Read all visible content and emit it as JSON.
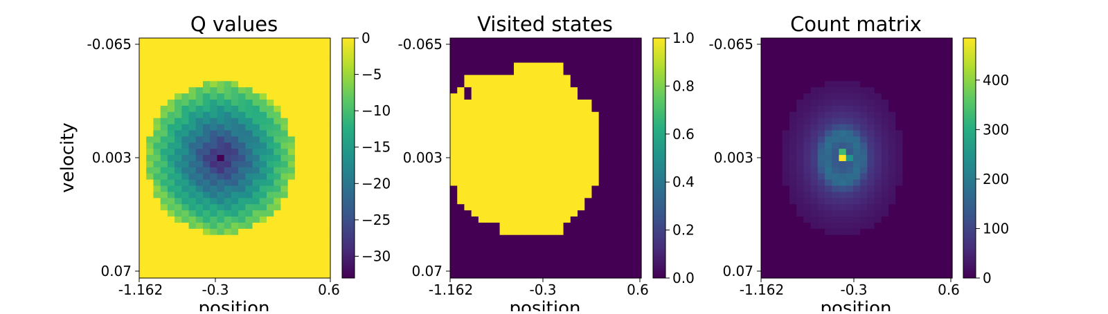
{
  "chart_data": [
    {
      "type": "heatmap",
      "title": "Q values",
      "xlabel": "position",
      "ylabel": "velocity",
      "xticks": [
        "-1.162",
        "-0.3",
        "0.6"
      ],
      "yticks": [
        "-0.065",
        "0.003",
        "0.07"
      ],
      "xlim": [
        -1.162,
        0.6
      ],
      "ylim": [
        -0.065,
        0.07
      ],
      "grid": false,
      "colormap": "viridis",
      "colorbar": {
        "ticks": [
          "0",
          "−5",
          "−10",
          "−15",
          "−20",
          "−25",
          "−30"
        ],
        "values": [
          0,
          -5,
          -10,
          -15,
          -20,
          -25,
          -30
        ],
        "range": [
          -33,
          0
        ]
      },
      "pattern": {
        "shape": "ring",
        "center_position": -0.45,
        "center_velocity": 0.003,
        "min_value": -33,
        "background_value": 0
      }
    },
    {
      "type": "heatmap",
      "title": "Visited states",
      "xlabel": "position",
      "ylabel": "",
      "xticks": [
        "-1.162",
        "-0.3",
        "0.6"
      ],
      "yticks": [
        "-0.065",
        "0.003",
        "0.07"
      ],
      "xlim": [
        -1.162,
        0.6
      ],
      "ylim": [
        -0.065,
        0.07
      ],
      "grid": false,
      "colormap": "viridis",
      "colorbar": {
        "ticks": [
          "0.0",
          "0.2",
          "0.4",
          "0.6",
          "0.8",
          "1.0"
        ],
        "values": [
          0,
          0.2,
          0.4,
          0.6,
          0.8,
          1.0
        ],
        "range": [
          0,
          1
        ]
      },
      "pattern": {
        "shape": "binary-blob",
        "visited_value": 1,
        "unvisited_value": 0
      }
    },
    {
      "type": "heatmap",
      "title": "Count matrix",
      "xlabel": "position",
      "ylabel": "",
      "xticks": [
        "-1.162",
        "-0.3",
        "0.6"
      ],
      "yticks": [
        "-0.065",
        "0.003",
        "0.07"
      ],
      "xlim": [
        -1.162,
        0.6
      ],
      "ylim": [
        -0.065,
        0.07
      ],
      "grid": false,
      "colormap": "viridis",
      "colorbar": {
        "ticks": [
          "0",
          "100",
          "200",
          "300",
          "400"
        ],
        "values": [
          0,
          100,
          200,
          300,
          400
        ],
        "range": [
          0,
          485
        ]
      },
      "pattern": {
        "shape": "peak",
        "peak_value": 485,
        "center_position": -0.45,
        "center_velocity": 0.003
      }
    }
  ]
}
